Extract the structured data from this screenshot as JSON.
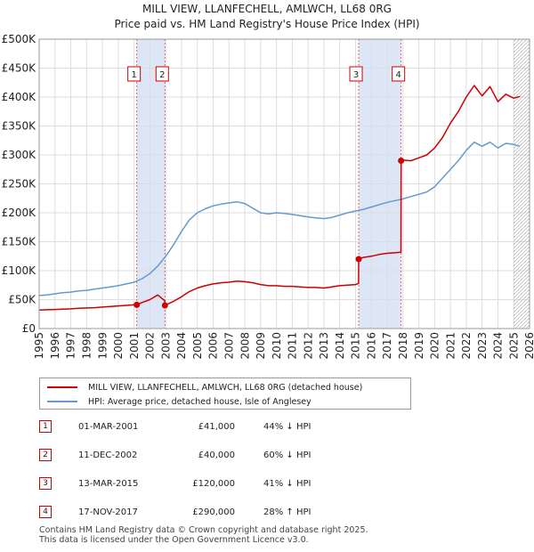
{
  "title_line1": "MILL VIEW, LLANFECHELL, AMLWCH, LL68 0RG",
  "title_line2": "Price paid vs. HM Land Registry's House Price Index (HPI)",
  "legend": [
    {
      "label": "MILL VIEW, LLANFECHELL, AMLWCH, LL68 0RG (detached house)",
      "color": "#cc0000"
    },
    {
      "label": "HPI: Average price, detached house, Isle of Anglesey",
      "color": "#6699cc"
    }
  ],
  "sales": [
    {
      "num": "1",
      "date": "01-MAR-2001",
      "price": "£41,000",
      "hpi": "44% ↓ HPI"
    },
    {
      "num": "2",
      "date": "11-DEC-2002",
      "price": "£40,000",
      "hpi": "60% ↓ HPI"
    },
    {
      "num": "3",
      "date": "13-MAR-2015",
      "price": "£120,000",
      "hpi": "41% ↓ HPI"
    },
    {
      "num": "4",
      "date": "17-NOV-2017",
      "price": "£290,000",
      "hpi": "28% ↑ HPI"
    }
  ],
  "footer_line1": "Contains HM Land Registry data © Crown copyright and database right 2025.",
  "footer_line2": "This data is licensed under the Open Government Licence v3.0.",
  "chart_data": {
    "type": "line",
    "title": "MILL VIEW, LLANFECHELL, AMLWCH, LL68 0RG — Price paid vs. HM Land Registry's House Price Index (HPI)",
    "xlim": [
      1995,
      2026
    ],
    "ylim": [
      0,
      500000
    ],
    "x_ticks": [
      1995,
      1996,
      1997,
      1998,
      1999,
      2000,
      2001,
      2002,
      2003,
      2004,
      2005,
      2006,
      2007,
      2008,
      2009,
      2010,
      2011,
      2012,
      2013,
      2014,
      2015,
      2016,
      2017,
      2018,
      2019,
      2020,
      2021,
      2022,
      2023,
      2024,
      2025,
      2026
    ],
    "y_ticks": [
      {
        "value": 0,
        "label": "£0"
      },
      {
        "value": 50000,
        "label": "£50K"
      },
      {
        "value": 100000,
        "label": "£100K"
      },
      {
        "value": 150000,
        "label": "£150K"
      },
      {
        "value": 200000,
        "label": "£200K"
      },
      {
        "value": 250000,
        "label": "£250K"
      },
      {
        "value": 300000,
        "label": "£300K"
      },
      {
        "value": 350000,
        "label": "£350K"
      },
      {
        "value": 400000,
        "label": "£400K"
      },
      {
        "value": 450000,
        "label": "£450K"
      },
      {
        "value": 500000,
        "label": "£500K"
      }
    ],
    "shaded_periods": [
      [
        2001.17,
        2002.95
      ],
      [
        2015.2,
        2017.88
      ]
    ],
    "shade_color": "#dde6f7",
    "future_hatch_start": 2025.0,
    "markers": [
      {
        "label": "1",
        "x": 2001.17,
        "value": 41000
      },
      {
        "label": "2",
        "x": 2002.95,
        "value": 40000
      },
      {
        "label": "3",
        "x": 2015.2,
        "value": 120000
      },
      {
        "label": "4",
        "x": 2017.88,
        "value": 290000
      }
    ],
    "marker_box_value": 440000,
    "series": [
      {
        "name": "HPI: Average price, detached house, Isle of Anglesey",
        "color": "#6699cc",
        "x": [
          1995,
          1995.5,
          1996,
          1996.5,
          1997,
          1997.5,
          1998,
          1998.5,
          1999,
          1999.5,
          2000,
          2000.5,
          2001,
          2001.5,
          2002,
          2002.5,
          2003,
          2003.5,
          2004,
          2004.5,
          2005,
          2005.5,
          2006,
          2006.5,
          2007,
          2007.5,
          2008,
          2008.5,
          2009,
          2009.5,
          2010,
          2010.5,
          2011,
          2011.5,
          2012,
          2012.5,
          2013,
          2013.5,
          2014,
          2014.5,
          2015,
          2015.5,
          2016,
          2016.5,
          2017,
          2017.5,
          2018,
          2018.5,
          2019,
          2019.5,
          2020,
          2020.5,
          2021,
          2021.5,
          2022,
          2022.5,
          2023,
          2023.5,
          2024,
          2024.5,
          2025,
          2025.4
        ],
        "values": [
          57000,
          58000,
          60000,
          62000,
          63000,
          65000,
          66000,
          68000,
          70000,
          72000,
          74000,
          77000,
          80000,
          86000,
          95000,
          108000,
          125000,
          145000,
          168000,
          188000,
          200000,
          207000,
          212000,
          215000,
          217000,
          219000,
          216000,
          208000,
          200000,
          198000,
          200000,
          199000,
          197000,
          195000,
          193000,
          191000,
          190000,
          192000,
          196000,
          200000,
          203000,
          206000,
          210000,
          214000,
          218000,
          221000,
          224000,
          228000,
          232000,
          236000,
          245000,
          260000,
          275000,
          290000,
          308000,
          322000,
          315000,
          322000,
          312000,
          320000,
          318000,
          315000
        ]
      },
      {
        "name": "MILL VIEW, LLANFECHELL, AMLWCH, LL68 0RG (detached house)",
        "color": "#cc0000",
        "x": [
          1995,
          1995.5,
          1996,
          1996.5,
          1997,
          1997.5,
          1998,
          1998.5,
          1999,
          1999.5,
          2000,
          2000.5,
          2001,
          2001.17,
          2001.5,
          2002,
          2002.5,
          2002.94,
          2002.95,
          2003.5,
          2004,
          2004.5,
          2005,
          2005.5,
          2006,
          2006.5,
          2007,
          2007.5,
          2008,
          2008.5,
          2009,
          2009.5,
          2010,
          2010.5,
          2011,
          2011.5,
          2012,
          2012.5,
          2013,
          2013.5,
          2014,
          2014.5,
          2015,
          2015.19,
          2015.2,
          2015.5,
          2016,
          2016.5,
          2017,
          2017.5,
          2017.87,
          2017.88,
          2018,
          2018.5,
          2019,
          2019.5,
          2020,
          2020.5,
          2021,
          2021.5,
          2022,
          2022.5,
          2023,
          2023.5,
          2024,
          2024.5,
          2025,
          2025.4
        ],
        "values": [
          32000,
          32500,
          33000,
          33500,
          34000,
          35000,
          35500,
          36000,
          37000,
          38000,
          39000,
          40000,
          41000,
          41000,
          45000,
          50000,
          58000,
          48000,
          40000,
          47000,
          55000,
          64000,
          70000,
          74000,
          77000,
          79000,
          80000,
          82000,
          81000,
          79000,
          76000,
          74000,
          74000,
          73000,
          73000,
          72000,
          71000,
          71000,
          70000,
          72000,
          74000,
          75000,
          76000,
          78000,
          120000,
          123000,
          125000,
          128000,
          130000,
          131000,
          132000,
          290000,
          291000,
          290000,
          295000,
          300000,
          312000,
          330000,
          355000,
          375000,
          400000,
          420000,
          402000,
          418000,
          392000,
          405000,
          398000,
          401000
        ]
      }
    ]
  }
}
